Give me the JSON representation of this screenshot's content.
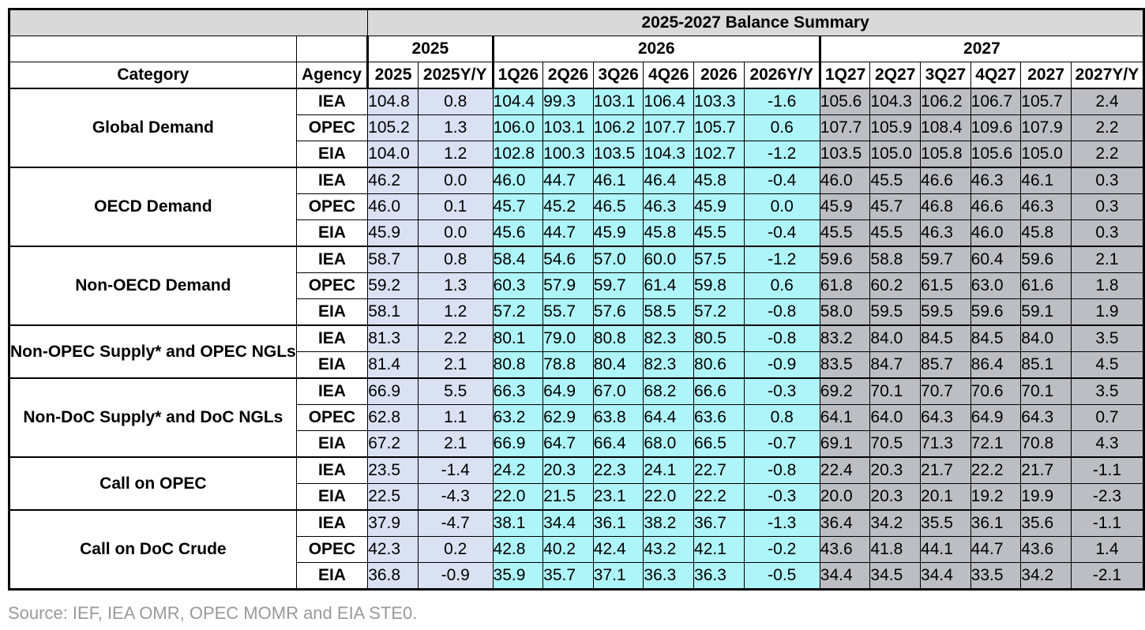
{
  "title": "2025-2027 Balance Summary",
  "year_headers": [
    "2025",
    "2026",
    "2027"
  ],
  "column_headers": [
    "Category",
    "Agency",
    "2025",
    "2025Y/Y",
    "1Q26",
    "2Q26",
    "3Q26",
    "4Q26",
    "2026",
    "2026Y/Y",
    "1Q27",
    "2Q27",
    "3Q27",
    "4Q27",
    "2027",
    "2027Y/Y"
  ],
  "groups": [
    {
      "category": "Global Demand",
      "rows": [
        {
          "agency": "IEA",
          "values": [
            "104.8",
            "0.8",
            "104.4",
            "99.3",
            "103.1",
            "106.4",
            "103.3",
            "-1.6",
            "105.6",
            "104.3",
            "106.2",
            "106.7",
            "105.7",
            "2.4"
          ]
        },
        {
          "agency": "OPEC",
          "values": [
            "105.2",
            "1.3",
            "106.0",
            "103.1",
            "106.2",
            "107.7",
            "105.7",
            "0.6",
            "107.7",
            "105.9",
            "108.4",
            "109.6",
            "107.9",
            "2.2"
          ]
        },
        {
          "agency": "EIA",
          "values": [
            "104.0",
            "1.2",
            "102.8",
            "100.3",
            "103.5",
            "104.3",
            "102.7",
            "-1.2",
            "103.5",
            "105.0",
            "105.8",
            "105.6",
            "105.0",
            "2.2"
          ]
        }
      ]
    },
    {
      "category": "OECD Demand",
      "rows": [
        {
          "agency": "IEA",
          "values": [
            "46.2",
            "0.0",
            "46.0",
            "44.7",
            "46.1",
            "46.4",
            "45.8",
            "-0.4",
            "46.0",
            "45.5",
            "46.6",
            "46.3",
            "46.1",
            "0.3"
          ]
        },
        {
          "agency": "OPEC",
          "values": [
            "46.0",
            "0.1",
            "45.7",
            "45.2",
            "46.5",
            "46.3",
            "45.9",
            "0.0",
            "45.9",
            "45.7",
            "46.8",
            "46.6",
            "46.3",
            "0.3"
          ]
        },
        {
          "agency": "EIA",
          "values": [
            "45.9",
            "0.0",
            "45.6",
            "44.7",
            "45.9",
            "45.8",
            "45.5",
            "-0.4",
            "45.5",
            "45.5",
            "46.3",
            "46.0",
            "45.8",
            "0.3"
          ]
        }
      ]
    },
    {
      "category": "Non-OECD Demand",
      "rows": [
        {
          "agency": "IEA",
          "values": [
            "58.7",
            "0.8",
            "58.4",
            "54.6",
            "57.0",
            "60.0",
            "57.5",
            "-1.2",
            "59.6",
            "58.8",
            "59.7",
            "60.4",
            "59.6",
            "2.1"
          ]
        },
        {
          "agency": "OPEC",
          "values": [
            "59.2",
            "1.3",
            "60.3",
            "57.9",
            "59.7",
            "61.4",
            "59.8",
            "0.6",
            "61.8",
            "60.2",
            "61.5",
            "63.0",
            "61.6",
            "1.8"
          ]
        },
        {
          "agency": "EIA",
          "values": [
            "58.1",
            "1.2",
            "57.2",
            "55.7",
            "57.6",
            "58.5",
            "57.2",
            "-0.8",
            "58.0",
            "59.5",
            "59.5",
            "59.6",
            "59.1",
            "1.9"
          ]
        }
      ]
    },
    {
      "category": "Non-OPEC Supply* and OPEC NGLs",
      "rows": [
        {
          "agency": "IEA",
          "values": [
            "81.3",
            "2.2",
            "80.1",
            "79.0",
            "80.8",
            "82.3",
            "80.5",
            "-0.8",
            "83.2",
            "84.0",
            "84.5",
            "84.5",
            "84.0",
            "3.5"
          ]
        },
        {
          "agency": "EIA",
          "values": [
            "81.4",
            "2.1",
            "80.8",
            "78.8",
            "80.4",
            "82.3",
            "80.6",
            "-0.9",
            "83.5",
            "84.7",
            "85.7",
            "86.4",
            "85.1",
            "4.5"
          ]
        }
      ]
    },
    {
      "category": "Non-DoC Supply* and DoC NGLs",
      "rows": [
        {
          "agency": "IEA",
          "values": [
            "66.9",
            "5.5",
            "66.3",
            "64.9",
            "67.0",
            "68.2",
            "66.6",
            "-0.3",
            "69.2",
            "70.1",
            "70.7",
            "70.6",
            "70.1",
            "3.5"
          ]
        },
        {
          "agency": "OPEC",
          "values": [
            "62.8",
            "1.1",
            "63.2",
            "62.9",
            "63.8",
            "64.4",
            "63.6",
            "0.8",
            "64.1",
            "64.0",
            "64.3",
            "64.9",
            "64.3",
            "0.7"
          ]
        },
        {
          "agency": "EIA",
          "values": [
            "67.2",
            "2.1",
            "66.9",
            "64.7",
            "66.4",
            "68.0",
            "66.5",
            "-0.7",
            "69.1",
            "70.5",
            "71.3",
            "72.1",
            "70.8",
            "4.3"
          ]
        }
      ]
    },
    {
      "category": "Call on OPEC",
      "rows": [
        {
          "agency": "IEA",
          "values": [
            "23.5",
            "-1.4",
            "24.2",
            "20.3",
            "22.3",
            "24.1",
            "22.7",
            "-0.8",
            "22.4",
            "20.3",
            "21.7",
            "22.2",
            "21.7",
            "-1.1"
          ]
        },
        {
          "agency": "EIA",
          "values": [
            "22.5",
            "-4.3",
            "22.0",
            "21.5",
            "23.1",
            "22.0",
            "22.2",
            "-0.3",
            "20.0",
            "20.3",
            "20.1",
            "19.2",
            "19.9",
            "-2.3"
          ]
        }
      ]
    },
    {
      "category": "Call on DoC Crude",
      "rows": [
        {
          "agency": "IEA",
          "values": [
            "37.9",
            "-4.7",
            "38.1",
            "34.4",
            "36.1",
            "38.2",
            "36.7",
            "-1.3",
            "36.4",
            "34.2",
            "35.5",
            "36.1",
            "35.6",
            "-1.1"
          ]
        },
        {
          "agency": "OPEC",
          "values": [
            "42.3",
            "0.2",
            "42.8",
            "40.2",
            "42.4",
            "43.2",
            "42.1",
            "-0.2",
            "43.6",
            "41.8",
            "44.1",
            "44.7",
            "43.6",
            "1.4"
          ]
        },
        {
          "agency": "EIA",
          "values": [
            "36.8",
            "-0.9",
            "35.9",
            "35.7",
            "37.1",
            "36.3",
            "36.3",
            "-0.5",
            "34.4",
            "34.5",
            "34.4",
            "33.5",
            "34.2",
            "-2.1"
          ]
        }
      ]
    }
  ],
  "colors": {
    "col_2025": "#dae1f3",
    "col_2026": "#aef5f9",
    "col_2027": "#bcbec3",
    "title_bg": "#d9d9d9"
  },
  "source": "Source: IEF, IEA OMR, OPEC MOMR and EIA STE0."
}
